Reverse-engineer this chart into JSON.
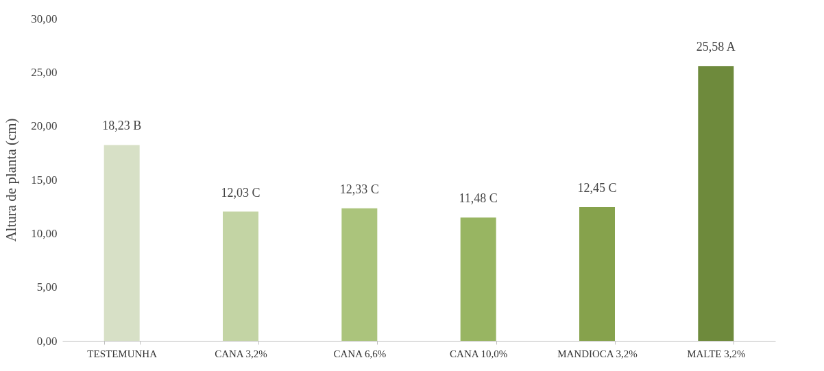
{
  "chart_data": {
    "type": "bar",
    "ylabel": "Altura de planta (cm)",
    "categories": [
      "TESTEMUNHA",
      "CANA 3,2%",
      "CANA 6,6%",
      "CANA 10,0%",
      "MANDIOCA 3,2%",
      "MALTE 3,2%"
    ],
    "values": [
      18.23,
      12.03,
      12.33,
      11.48,
      12.45,
      25.58
    ],
    "colors": [
      "#d7e0c6",
      "#c3d4a4",
      "#abc47c",
      "#98b562",
      "#86a24c",
      "#6e8a3c"
    ],
    "value_labels": [
      "18,23 B",
      "12,03 C",
      "12,33 C",
      "11,48 C",
      "12,45 C",
      "25,58 A"
    ],
    "ylim": [
      0,
      30
    ],
    "yticks": [
      {
        "value": 0,
        "label": "0,00"
      },
      {
        "value": 5,
        "label": "5,00"
      },
      {
        "value": 10,
        "label": "10,00"
      },
      {
        "value": 15,
        "label": "15,00"
      },
      {
        "value": 20,
        "label": "20,00"
      },
      {
        "value": 25,
        "label": "25,00"
      },
      {
        "value": 30,
        "label": "30,00"
      }
    ],
    "grid": false
  }
}
